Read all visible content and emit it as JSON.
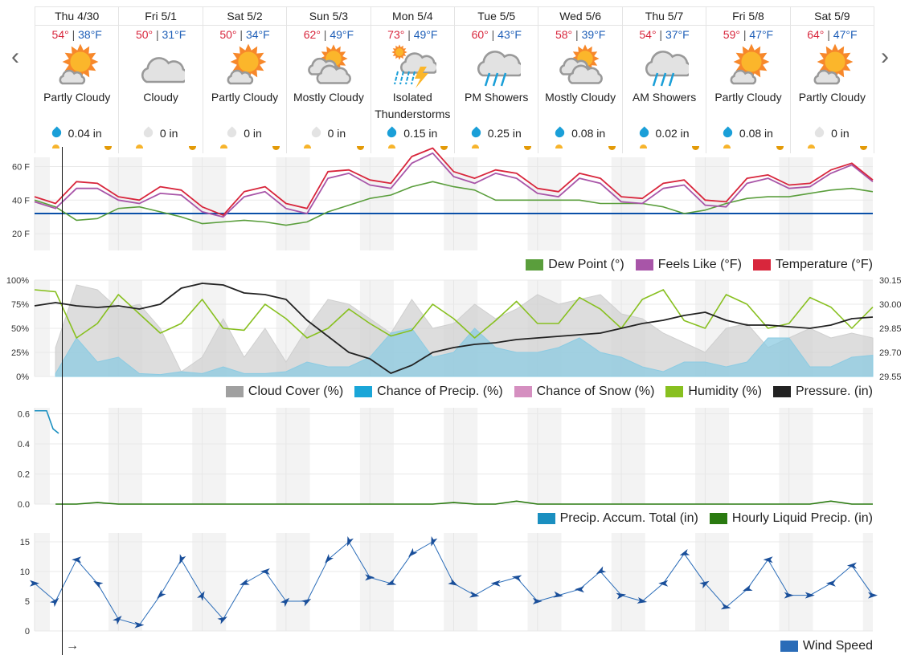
{
  "nav": {
    "prev_icon": "chevron-left-icon",
    "next_icon": "chevron-right-icon"
  },
  "days": [
    {
      "label": "Thu 4/30",
      "hi": "54°",
      "lo": "38°F",
      "icon": "partly-cloudy",
      "condition": "Partly Cloudy",
      "precip": "0.04 in",
      "wet": true
    },
    {
      "label": "Fri 5/1",
      "hi": "50°",
      "lo": "31°F",
      "icon": "cloudy",
      "condition": "Cloudy",
      "precip": "0 in",
      "wet": false
    },
    {
      "label": "Sat 5/2",
      "hi": "50°",
      "lo": "34°F",
      "icon": "partly-cloudy",
      "condition": "Partly Cloudy",
      "precip": "0 in",
      "wet": false
    },
    {
      "label": "Sun 5/3",
      "hi": "62°",
      "lo": "49°F",
      "icon": "mostly-cloudy",
      "condition": "Mostly Cloudy",
      "precip": "0 in",
      "wet": false
    },
    {
      "label": "Mon 5/4",
      "hi": "73°",
      "lo": "49°F",
      "icon": "thunderstorms",
      "condition": "Isolated Thunderstorms",
      "precip": "0.15 in",
      "wet": true
    },
    {
      "label": "Tue 5/5",
      "hi": "60°",
      "lo": "43°F",
      "icon": "showers",
      "condition": "PM Showers",
      "precip": "0.25 in",
      "wet": true
    },
    {
      "label": "Wed 5/6",
      "hi": "58°",
      "lo": "39°F",
      "icon": "mostly-cloudy",
      "condition": "Mostly Cloudy",
      "precip": "0.08 in",
      "wet": true
    },
    {
      "label": "Thu 5/7",
      "hi": "54°",
      "lo": "37°F",
      "icon": "showers",
      "condition": "AM Showers",
      "precip": "0.02 in",
      "wet": true
    },
    {
      "label": "Fri 5/8",
      "hi": "59°",
      "lo": "47°F",
      "icon": "partly-cloudy",
      "condition": "Partly Cloudy",
      "precip": "0.08 in",
      "wet": true
    },
    {
      "label": "Sat 5/9",
      "hi": "64°",
      "lo": "47°F",
      "icon": "partly-cloudy",
      "condition": "Partly Cloudy",
      "precip": "0 in",
      "wet": false
    }
  ],
  "colors": {
    "hi": "#d8263c",
    "lo": "#2060b8",
    "drop_wet": "#1a9fd8",
    "drop_dry": "#e3e3e3",
    "temperature": "#d8263c",
    "feels_like": "#a855a8",
    "dew_point": "#5a9e3c",
    "freeze": "#0a50a8",
    "cloud": "#a0a0a0",
    "precip_chance": "#1aa6d8",
    "snow": "#d58fc0",
    "humidity": "#88c020",
    "pressure": "#222222",
    "accum": "#1a8fc0",
    "hourly": "#2a7a10",
    "wind": "#2a6cb8"
  },
  "cursor_arrow": "→",
  "chart_data": [
    {
      "type": "line",
      "x_start": "Thu 4/30",
      "x_interval_hours": 6,
      "yticks": [
        "20 F",
        "40 F",
        "60 F"
      ],
      "ylim": [
        20,
        70
      ],
      "grid": true,
      "legend": "bottom-right",
      "freeze_line": 32,
      "series": [
        {
          "name": "Dew Point (°)",
          "values": [
            40,
            36,
            28,
            29,
            35,
            36,
            33,
            30,
            26,
            27,
            28,
            27,
            25,
            27,
            33,
            37,
            41,
            43,
            48,
            51,
            48,
            46,
            40,
            40,
            40,
            40,
            40,
            38,
            38,
            38,
            36,
            32,
            34,
            38,
            41,
            42,
            42,
            44,
            46,
            47,
            45
          ]
        },
        {
          "name": "Feels Like (°F)",
          "values": [
            39,
            35,
            47,
            47,
            40,
            38,
            44,
            43,
            33,
            30,
            42,
            45,
            35,
            32,
            53,
            56,
            49,
            47,
            62,
            68,
            54,
            50,
            56,
            53,
            44,
            42,
            53,
            50,
            39,
            38,
            47,
            49,
            37,
            36,
            50,
            53,
            47,
            48,
            56,
            61,
            51
          ]
        },
        {
          "name": "Temperature (°F)",
          "values": [
            42,
            38,
            51,
            50,
            42,
            40,
            48,
            46,
            36,
            31,
            45,
            48,
            38,
            35,
            57,
            58,
            52,
            50,
            66,
            71,
            57,
            53,
            58,
            56,
            47,
            45,
            56,
            53,
            42,
            41,
            50,
            52,
            40,
            39,
            53,
            55,
            49,
            50,
            58,
            62,
            52
          ]
        }
      ]
    },
    {
      "type": "area",
      "x_start": "Thu 4/30",
      "x_interval_hours": 6,
      "yticks_left": [
        "100%",
        "75%",
        "50%",
        "25%",
        "0%"
      ],
      "yticks_right": [
        "30.15",
        "30.00",
        "29.85",
        "29.70",
        "29.55"
      ],
      "ylim": [
        0,
        100
      ],
      "ylim_right": [
        29.55,
        30.15
      ],
      "grid": true,
      "legend": "bottom-right",
      "series": [
        {
          "name": "Cloud Cover (%)",
          "values": [
            null,
            30,
            95,
            90,
            70,
            75,
            50,
            5,
            20,
            60,
            20,
            50,
            15,
            50,
            80,
            75,
            60,
            45,
            80,
            50,
            55,
            75,
            60,
            70,
            85,
            75,
            80,
            85,
            65,
            60,
            45,
            35,
            25,
            50,
            55,
            30,
            40,
            50,
            40,
            45,
            40
          ]
        },
        {
          "name": "Chance of Precip. (%)",
          "values": [
            null,
            3,
            40,
            15,
            20,
            3,
            2,
            5,
            3,
            10,
            3,
            3,
            5,
            15,
            10,
            10,
            20,
            45,
            50,
            20,
            25,
            50,
            30,
            25,
            25,
            30,
            40,
            25,
            20,
            10,
            5,
            15,
            15,
            10,
            15,
            40,
            40,
            10,
            10,
            20,
            22
          ]
        },
        {
          "name": "Chance of Snow (%)",
          "values": []
        },
        {
          "name": "Humidity (%)",
          "values": [
            90,
            88,
            40,
            55,
            85,
            65,
            45,
            55,
            80,
            50,
            48,
            75,
            60,
            40,
            50,
            70,
            55,
            42,
            48,
            75,
            60,
            40,
            58,
            78,
            55,
            55,
            82,
            70,
            50,
            80,
            90,
            58,
            50,
            85,
            75,
            50,
            55,
            82,
            72,
            50,
            72
          ]
        },
        {
          "name": "Pressure. (in)",
          "axis": "right",
          "values": [
            29.99,
            30.01,
            29.99,
            29.98,
            29.99,
            29.97,
            30.0,
            30.1,
            30.13,
            30.12,
            30.07,
            30.06,
            30.03,
            29.9,
            29.8,
            29.7,
            29.66,
            29.57,
            29.62,
            29.7,
            29.73,
            29.75,
            29.76,
            29.78,
            29.79,
            29.8,
            29.81,
            29.82,
            29.85,
            29.88,
            29.9,
            29.93,
            29.95,
            29.9,
            29.87,
            29.87,
            29.86,
            29.85,
            29.87,
            29.91,
            29.92
          ]
        }
      ]
    },
    {
      "type": "line",
      "x_start": "Thu 4/30",
      "x_interval_hours": 6,
      "yticks": [
        "0.6",
        "0.4",
        "0.2",
        "0.0"
      ],
      "ylim": [
        0,
        0.64
      ],
      "grid": true,
      "legend": "bottom-right",
      "series": [
        {
          "name": "Precip. Accum. Total (in)",
          "values": [
            0.62,
            0.47
          ]
        },
        {
          "name": "Hourly Liquid Precip. (in)",
          "values": [
            null,
            0,
            0,
            0.01,
            0,
            0,
            0,
            0,
            0,
            0,
            0,
            0,
            0,
            0,
            0,
            0,
            0,
            0,
            0,
            0,
            0.01,
            0,
            0,
            0.02,
            0,
            0,
            0,
            0,
            0,
            0,
            0,
            0,
            0,
            0,
            0,
            0,
            0,
            0,
            0.02,
            0,
            0
          ]
        }
      ]
    },
    {
      "type": "line",
      "x_start": "Thu 4/30",
      "x_interval_hours": 6,
      "yticks": [
        "15",
        "10",
        "5",
        "0"
      ],
      "ylim": [
        0,
        16
      ],
      "grid": true,
      "legend": "bottom-right",
      "series": [
        {
          "name": "Wind Speed",
          "values": [
            8,
            5,
            12,
            8,
            2,
            1,
            6,
            12,
            6,
            2,
            8,
            10,
            5,
            5,
            12,
            15,
            9,
            8,
            13,
            15,
            8,
            6,
            8,
            9,
            5,
            6,
            7,
            10,
            6,
            5,
            8,
            13,
            8,
            4,
            7,
            12,
            6,
            6,
            8,
            11,
            6
          ],
          "direction_deg": [
            90,
            45,
            270,
            300,
            45,
            90,
            225,
            200,
            30,
            60,
            250,
            270,
            45,
            60,
            220,
            200,
            90,
            250,
            225,
            200,
            120,
            100,
            270,
            280,
            90,
            100,
            270,
            240,
            80,
            100,
            270,
            250,
            60,
            100,
            250,
            270,
            90,
            90,
            270,
            270,
            90
          ]
        }
      ]
    }
  ]
}
